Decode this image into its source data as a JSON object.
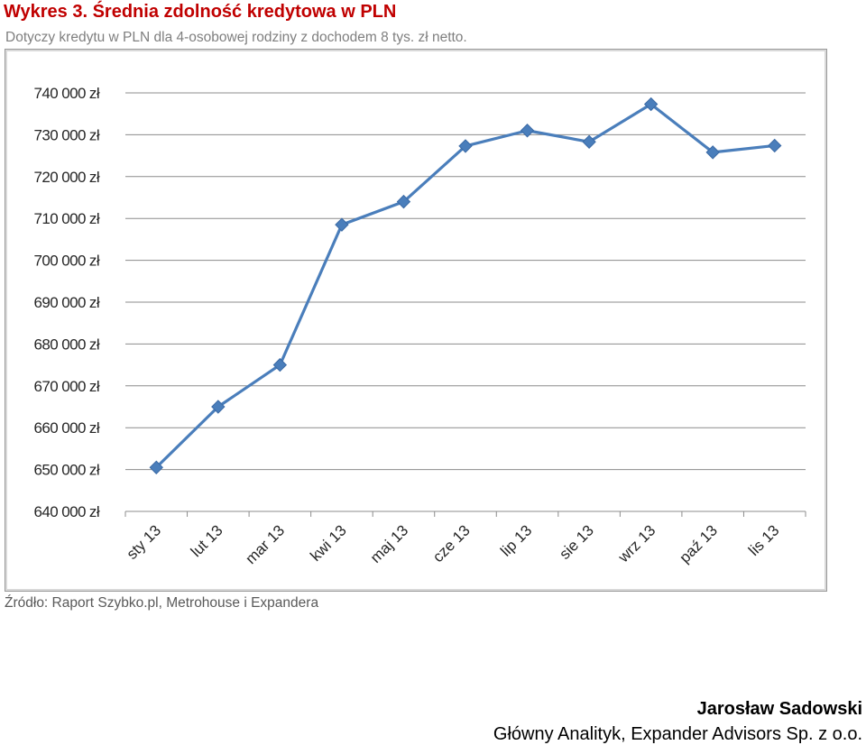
{
  "header": {
    "title": "Wykres 3. Średnia zdolność kredytowa w PLN",
    "subtitle": "Dotyczy kredytu w PLN dla 4-osobowej rodziny z dochodem 8 tys. zł netto."
  },
  "source": "Źródło: Raport Szybko.pl, Metrohouse i Expandera",
  "author": {
    "name": "Jarosław Sadowski",
    "role": "Główny Analityk, Expander Advisors Sp. z o.o."
  },
  "colors": {
    "line": "#4a7ebb",
    "marker": "#4a7ebb",
    "grid": "#8c8c8c",
    "title": "#c00000"
  },
  "chart_data": {
    "type": "line",
    "title": "",
    "xlabel": "",
    "ylabel": "",
    "categories": [
      "sty 13",
      "lut 13",
      "mar 13",
      "kwi 13",
      "maj 13",
      "cze 13",
      "lip 13",
      "sie 13",
      "wrz 13",
      "paź 13",
      "lis 13"
    ],
    "series": [
      {
        "values": [
          650500,
          665000,
          675000,
          708500,
          714000,
          727300,
          731000,
          728300,
          737300,
          725800,
          727400
        ]
      }
    ],
    "ylim": [
      640000,
      740000
    ],
    "y_ticks": [
      640000,
      650000,
      660000,
      670000,
      680000,
      690000,
      700000,
      710000,
      720000,
      730000,
      740000
    ],
    "y_tick_labels": [
      "640 000 zł",
      "650 000 zł",
      "660 000 zł",
      "670 000 zł",
      "680 000 zł",
      "690 000 zł",
      "700 000 zł",
      "710 000 zł",
      "720 000 zł",
      "730 000 zł",
      "740 000 zł"
    ],
    "grid": true,
    "legend": "none",
    "marker": "diamond"
  }
}
